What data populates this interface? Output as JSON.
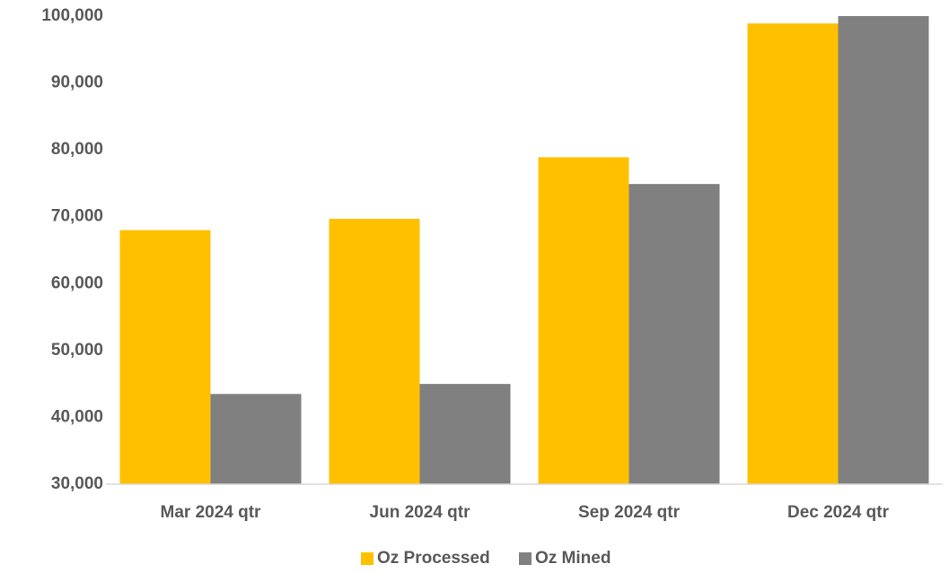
{
  "chart_data": {
    "type": "bar",
    "categories": [
      "Mar 2024 qtr",
      "Jun 2024 qtr",
      "Sep 2024 qtr",
      "Dec 2024 qtr"
    ],
    "series": [
      {
        "name": "Oz Processed",
        "color": "#FFC000",
        "values": [
          68000,
          69700,
          78900,
          98900
        ]
      },
      {
        "name": "Oz Mined",
        "color": "#808080",
        "values": [
          43500,
          45000,
          74900,
          100000
        ]
      }
    ],
    "ylim": [
      30000,
      100000
    ],
    "yticks": [
      {
        "value": 30000,
        "label": "30,000"
      },
      {
        "value": 40000,
        "label": "40,000"
      },
      {
        "value": 50000,
        "label": "50,000"
      },
      {
        "value": 60000,
        "label": "60,000"
      },
      {
        "value": 70000,
        "label": "70,000"
      },
      {
        "value": 80000,
        "label": "80,000"
      },
      {
        "value": 90000,
        "label": "90,000"
      },
      {
        "value": 100000,
        "label": "100,000"
      }
    ],
    "grid": false,
    "legend": "bottom"
  }
}
